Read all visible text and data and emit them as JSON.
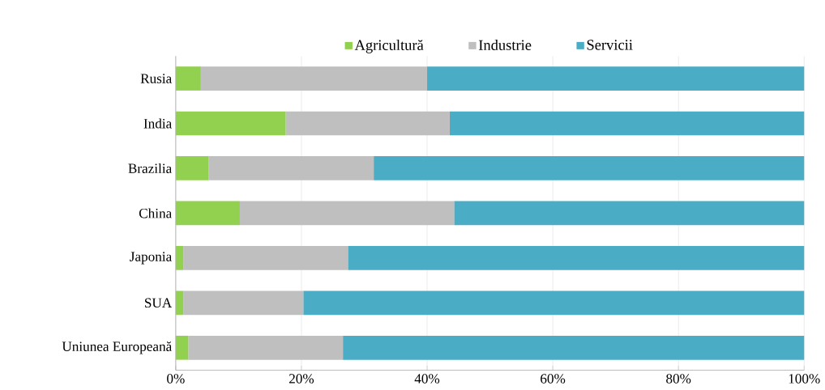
{
  "chart_data": {
    "type": "bar",
    "orientation": "horizontal",
    "stacked": true,
    "categories": [
      "Rusia",
      "India",
      "Brazilia",
      "China",
      "Japonia",
      "SUA",
      "Uniunea Europeană"
    ],
    "series": [
      {
        "name": "Agricultură",
        "color": "#92d050",
        "values": [
          4.0,
          17.5,
          5.2,
          10.2,
          1.2,
          1.2,
          2.0
        ]
      },
      {
        "name": "Industrie",
        "color": "#bfbfbf",
        "values": [
          36.0,
          26.1,
          26.3,
          34.1,
          26.2,
          19.1,
          24.6
        ]
      },
      {
        "name": "Servicii",
        "color": "#4bacc6",
        "values": [
          60.0,
          56.4,
          68.5,
          55.7,
          72.6,
          79.7,
          73.4
        ]
      }
    ],
    "xlim": [
      0,
      100
    ],
    "xticks": [
      {
        "value": 0,
        "label": "0%"
      },
      {
        "value": 20,
        "label": "20%"
      },
      {
        "value": 40,
        "label": "40%"
      },
      {
        "value": 60,
        "label": "60%"
      },
      {
        "value": 80,
        "label": "80%"
      },
      {
        "value": 100,
        "label": "100%"
      }
    ],
    "grid": "x",
    "legend": "top"
  }
}
